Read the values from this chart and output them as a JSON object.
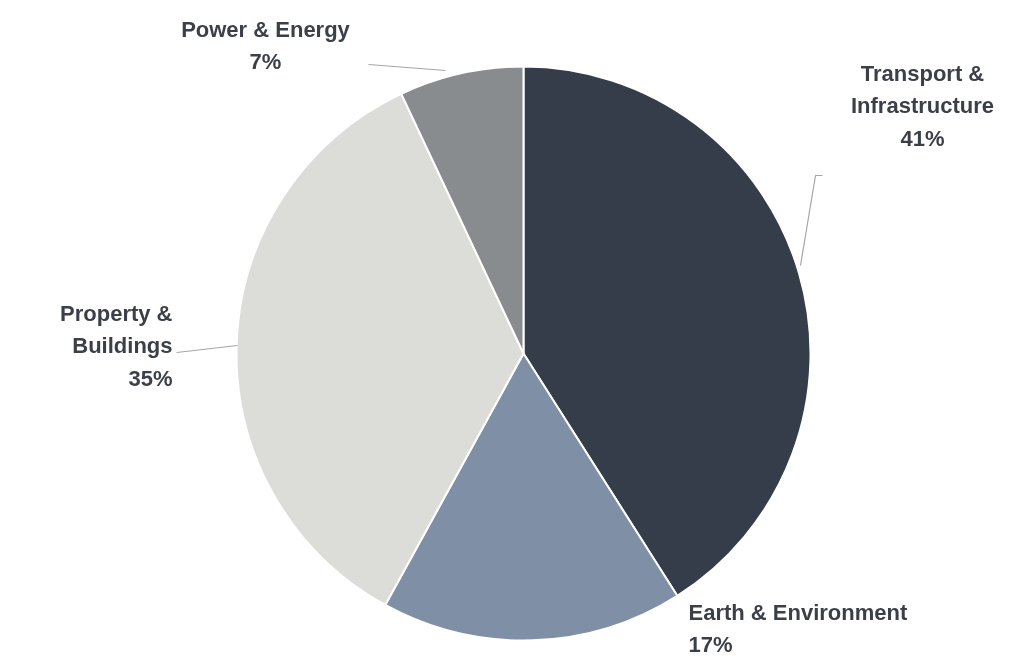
{
  "chart_data": {
    "type": "pie",
    "categories": [
      "Transport & Infrastructure",
      "Earth & Environment",
      "Property & Buildings",
      "Power & Energy"
    ],
    "values": [
      41,
      17,
      35,
      7
    ],
    "colors": [
      "#353c4a",
      "#7f90a6",
      "#dcdcd8",
      "#898c8f"
    ],
    "value_labels": [
      "41%",
      "17%",
      "35%",
      "7%"
    ]
  }
}
